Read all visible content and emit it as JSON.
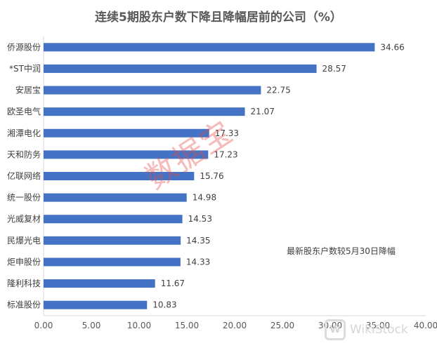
{
  "chart_data": {
    "type": "bar",
    "orientation": "horizontal",
    "title": "连续5期股东户数下降且降幅居前的公司（%）",
    "categories": [
      "侨源股份",
      "*ST中润",
      "安居宝",
      "欧圣电气",
      "湘潭电化",
      "天和防务",
      "亿联网络",
      "统一股份",
      "光威复材",
      "民爆光电",
      "炬申股份",
      "隆利科技",
      "标准股份"
    ],
    "values": [
      34.66,
      28.57,
      22.75,
      21.07,
      17.33,
      17.23,
      15.76,
      14.98,
      14.53,
      14.35,
      14.33,
      11.67,
      10.83
    ],
    "value_labels": [
      "34.66",
      "28.57",
      "22.75",
      "21.07",
      "17.33",
      "17.23",
      "15.76",
      "14.98",
      "14.53",
      "14.35",
      "14.33",
      "11.67",
      "10.83"
    ],
    "xlim": [
      0,
      40
    ],
    "x_ticks": [
      "0.00",
      "5.00",
      "10.00",
      "15.00",
      "20.00",
      "25.00",
      "30.00",
      "35.00",
      "40.00"
    ],
    "annotation": "最新股东户数较5月30日降幅",
    "bar_color": "#4472c4",
    "grid": false
  },
  "watermarks": {
    "text": "数据宝",
    "logo_glyph": "W",
    "logo_text": "WikiStock"
  }
}
